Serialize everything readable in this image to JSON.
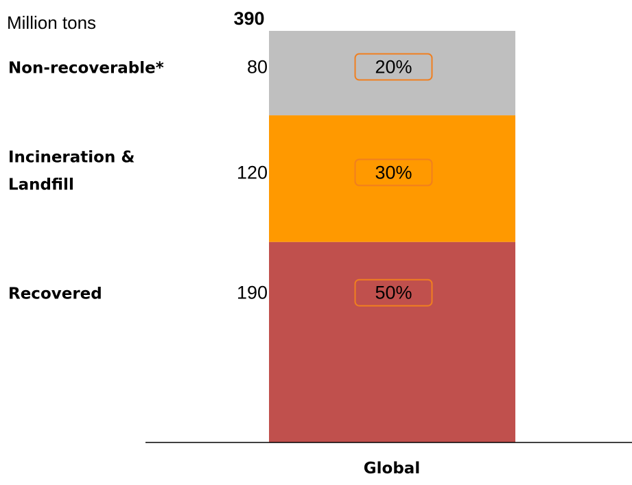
{
  "chart_data": {
    "type": "bar",
    "stacked": true,
    "unit_label": "Million tons",
    "total_label": "390",
    "categories": [
      "Global"
    ],
    "ylim": [
      0,
      390
    ],
    "series": [
      {
        "name": "Recovered",
        "values": [
          190
        ],
        "value_label": "190",
        "percent_label": "50%",
        "color": "#c0504d"
      },
      {
        "name": "Incineration & Landfill",
        "name_lines": [
          "Incineration &",
          "Landfill"
        ],
        "values": [
          120
        ],
        "value_label": "120",
        "percent_label": "30%",
        "color": "#ff9900"
      },
      {
        "name": "Non-recoverable*",
        "values": [
          80
        ],
        "value_label": "80",
        "percent_label": "20%",
        "color": "#bfbfbf"
      }
    ],
    "badge_border_color": "#f07f1f",
    "axis_color": "#000000"
  }
}
